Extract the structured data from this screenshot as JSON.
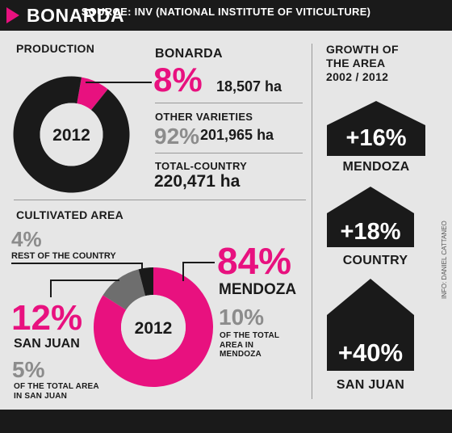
{
  "header": {
    "title": "BONARDA"
  },
  "footer": {
    "source": "SOURCE: INV (NATIONAL INSTITUTE OF VITICULTURE)"
  },
  "credit": "INFO: DANIEL CATTANEO",
  "colors": {
    "pink": "#e8117f",
    "dark": "#1a1a1a",
    "gray": "#6e6e6e",
    "background": "#e6e6e6"
  },
  "production": {
    "heading": "PRODUCTION",
    "bonarda_label": "BONARDA",
    "bonarda_pct": "8%",
    "bonarda_ha": "18,507 ha",
    "other_label": "OTHER VARIETIES",
    "other_pct": "92%",
    "other_ha": "201,965 ha",
    "total_label": "TOTAL-COUNTRY",
    "total_ha": "220,471 ha"
  },
  "cultivated": {
    "heading": "CULTIVATED AREA",
    "rest_pct": "4%",
    "rest_label": "REST OF THE COUNTRY",
    "mendoza_pct": "84%",
    "mendoza_label": "MENDOZA",
    "mendoza_share_pct": "10%",
    "mendoza_share_text": [
      "OF THE TOTAL",
      "AREA IN",
      "MENDOZA"
    ],
    "sanjuan_pct": "12%",
    "sanjuan_label": "SAN JUAN",
    "sanjuan_share_pct": "5%",
    "sanjuan_share_text": [
      "OF THE TOTAL AREA",
      "IN SAN JUAN"
    ]
  },
  "growth": {
    "heading": [
      "GROWTH OF",
      "THE AREA",
      "2002 / 2012"
    ],
    "items": [
      {
        "value": "+16%",
        "label": "MENDOZA",
        "growth": 16
      },
      {
        "value": "+18%",
        "label": "COUNTRY",
        "growth": 18
      },
      {
        "value": "+40%",
        "label": "SAN JUAN",
        "growth": 40
      }
    ]
  },
  "chart_data": [
    {
      "type": "pie",
      "title": "PRODUCTION",
      "center_label": "2012",
      "labels": [
        "BONARDA",
        "OTHER VARIETIES"
      ],
      "values": [
        8,
        92
      ],
      "colors": [
        "#e8117f",
        "#1a1a1a"
      ]
    },
    {
      "type": "pie",
      "title": "CULTIVATED AREA",
      "center_label": "2012",
      "labels": [
        "MENDOZA",
        "SAN JUAN",
        "REST OF THE COUNTRY"
      ],
      "values": [
        84,
        12,
        4
      ],
      "colors": [
        "#e8117f",
        "#6e6e6e",
        "#1a1a1a"
      ]
    }
  ]
}
